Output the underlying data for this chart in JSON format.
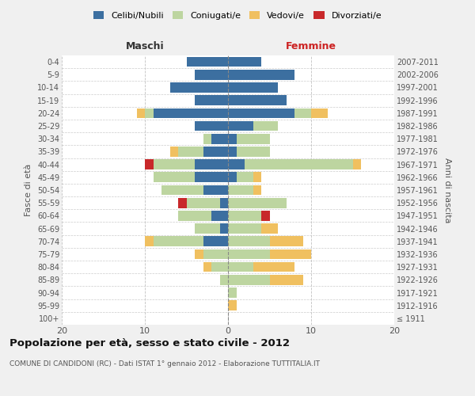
{
  "age_groups": [
    "100+",
    "95-99",
    "90-94",
    "85-89",
    "80-84",
    "75-79",
    "70-74",
    "65-69",
    "60-64",
    "55-59",
    "50-54",
    "45-49",
    "40-44",
    "35-39",
    "30-34",
    "25-29",
    "20-24",
    "15-19",
    "10-14",
    "5-9",
    "0-4"
  ],
  "birth_years": [
    "≤ 1911",
    "1912-1916",
    "1917-1921",
    "1922-1926",
    "1927-1931",
    "1932-1936",
    "1937-1941",
    "1942-1946",
    "1947-1951",
    "1952-1956",
    "1957-1961",
    "1962-1966",
    "1967-1971",
    "1972-1976",
    "1977-1981",
    "1982-1986",
    "1987-1991",
    "1992-1996",
    "1997-2001",
    "2002-2006",
    "2007-2011"
  ],
  "colors": {
    "celibi": "#3c6fa0",
    "coniugati": "#bdd5a0",
    "vedovi": "#f0c060",
    "divorziati": "#c8282a"
  },
  "males": {
    "celibi": [
      0,
      0,
      0,
      0,
      0,
      0,
      3,
      1,
      2,
      1,
      3,
      4,
      4,
      3,
      2,
      4,
      9,
      4,
      7,
      4,
      5
    ],
    "coniugati": [
      0,
      0,
      0,
      1,
      2,
      3,
      6,
      3,
      4,
      4,
      5,
      5,
      5,
      3,
      1,
      0,
      1,
      0,
      0,
      0,
      0
    ],
    "vedovi": [
      0,
      0,
      0,
      0,
      1,
      1,
      1,
      0,
      0,
      0,
      0,
      0,
      0,
      1,
      0,
      0,
      1,
      0,
      0,
      0,
      0
    ],
    "divorziati": [
      0,
      0,
      0,
      0,
      0,
      0,
      0,
      0,
      0,
      1,
      0,
      0,
      1,
      0,
      0,
      0,
      0,
      0,
      0,
      0,
      0
    ]
  },
  "females": {
    "nubili": [
      0,
      0,
      0,
      0,
      0,
      0,
      0,
      0,
      0,
      0,
      0,
      1,
      2,
      1,
      1,
      3,
      8,
      7,
      6,
      8,
      4
    ],
    "coniugate": [
      0,
      0,
      1,
      5,
      3,
      5,
      5,
      4,
      4,
      7,
      3,
      2,
      13,
      4,
      4,
      3,
      2,
      0,
      0,
      0,
      0
    ],
    "vedove": [
      0,
      1,
      0,
      4,
      5,
      5,
      4,
      2,
      0,
      0,
      1,
      1,
      1,
      0,
      0,
      0,
      2,
      0,
      0,
      0,
      0
    ],
    "divorziate": [
      0,
      0,
      0,
      0,
      0,
      0,
      0,
      0,
      1,
      0,
      0,
      0,
      0,
      0,
      0,
      0,
      0,
      0,
      0,
      0,
      0
    ]
  },
  "xlim": 20,
  "title": "Popolazione per età, sesso e stato civile - 2012",
  "subtitle": "COMUNE DI CANDIDONI (RC) - Dati ISTAT 1° gennaio 2012 - Elaborazione TUTTITALIA.IT",
  "ylabel_left": "Fasce di età",
  "ylabel_right": "Anni di nascita",
  "xlabel_left": "Maschi",
  "xlabel_right": "Femmine",
  "legend_labels": [
    "Celibi/Nubili",
    "Coniugati/e",
    "Vedovi/e",
    "Divorziati/e"
  ],
  "bg_color": "#f0f0f0",
  "plot_bg": "#ffffff"
}
